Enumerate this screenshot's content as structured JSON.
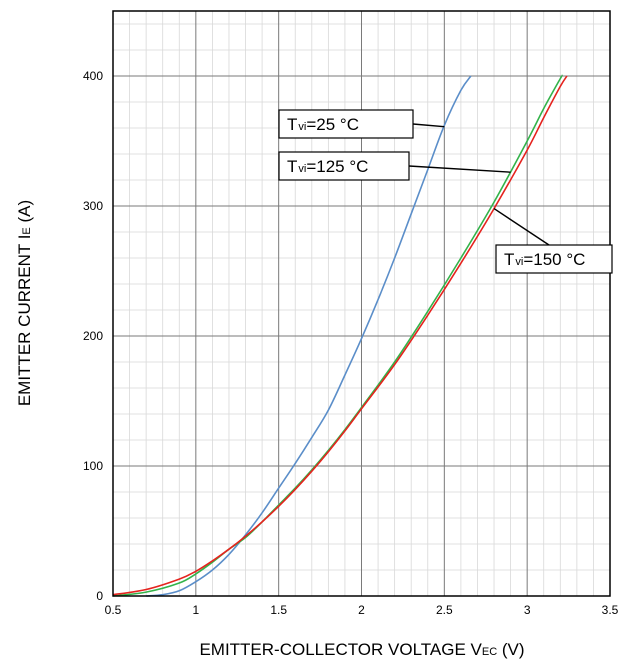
{
  "chart_data": {
    "type": "line",
    "title": "",
    "xlabel": "EMITTER-COLLECTOR VOLTAGE VEC (V)",
    "xlabel_parts": {
      "main": "EMITTER-COLLECTOR VOLTAGE V",
      "sub": "EC",
      "unit": " (V)"
    },
    "ylabel": "EMITTER CURRENT IE (A)",
    "ylabel_parts": {
      "main": "EMITTER CURRENT I",
      "sub": "E",
      "unit": " (A)"
    },
    "xlim": [
      0.5,
      3.5
    ],
    "ylim": [
      0,
      450
    ],
    "x_ticks": [
      "0.5",
      "1",
      "1.5",
      "2",
      "2.5",
      "3",
      "3.5"
    ],
    "y_ticks": [
      "0",
      "100",
      "200",
      "300",
      "400"
    ],
    "grid": true,
    "series": [
      {
        "name": "Tvi=25 °C",
        "color": "#5b8ec9",
        "x": [
          0.7,
          0.8,
          0.9,
          1.0,
          1.1,
          1.2,
          1.3,
          1.4,
          1.5,
          1.6,
          1.7,
          1.8,
          1.9,
          2.0,
          2.1,
          2.2,
          2.3,
          2.4,
          2.5,
          2.6,
          2.66
        ],
        "y": [
          0,
          1,
          4,
          11,
          20,
          32,
          47,
          64,
          83,
          102,
          122,
          143,
          170,
          198,
          228,
          260,
          294,
          328,
          362,
          389,
          400
        ]
      },
      {
        "name": "Tvi=125 °C",
        "color": "#33b34a",
        "x": [
          0.5,
          0.7,
          0.9,
          1.0,
          1.1,
          1.2,
          1.3,
          1.4,
          1.5,
          1.6,
          1.7,
          1.8,
          1.9,
          2.0,
          2.2,
          2.4,
          2.6,
          2.8,
          3.0,
          3.1,
          3.2,
          3.21
        ],
        "y": [
          0,
          3,
          10,
          17,
          26,
          36,
          45,
          57,
          70,
          83,
          97,
          112,
          128,
          145,
          180,
          219,
          260,
          303,
          350,
          375,
          398,
          400
        ]
      },
      {
        "name": "Tvi=150 °C",
        "color": "#e5231e",
        "x": [
          0.5,
          0.7,
          0.9,
          1.0,
          1.1,
          1.2,
          1.3,
          1.4,
          1.5,
          1.6,
          1.7,
          1.8,
          1.9,
          2.0,
          2.2,
          2.4,
          2.6,
          2.8,
          3.0,
          3.1,
          3.2,
          3.24
        ],
        "y": [
          1,
          5,
          13,
          19,
          27,
          36,
          46,
          57,
          69,
          82,
          96,
          111,
          127,
          144,
          178,
          216,
          256,
          298,
          343,
          368,
          392,
          400
        ]
      }
    ],
    "annotations": [
      {
        "series": 0,
        "label_main": "T",
        "label_sub": "vi",
        "label_rest": "=25 °C",
        "at_x": 2.5,
        "at_y": 361
      },
      {
        "series": 1,
        "label_main": "T",
        "label_sub": "vi",
        "label_rest": "=125 °C",
        "at_x": 2.9,
        "at_y": 326
      },
      {
        "series": 2,
        "label_main": "T",
        "label_sub": "vi",
        "label_rest": "=150 °C",
        "at_x": 2.8,
        "at_y": 298
      }
    ]
  }
}
